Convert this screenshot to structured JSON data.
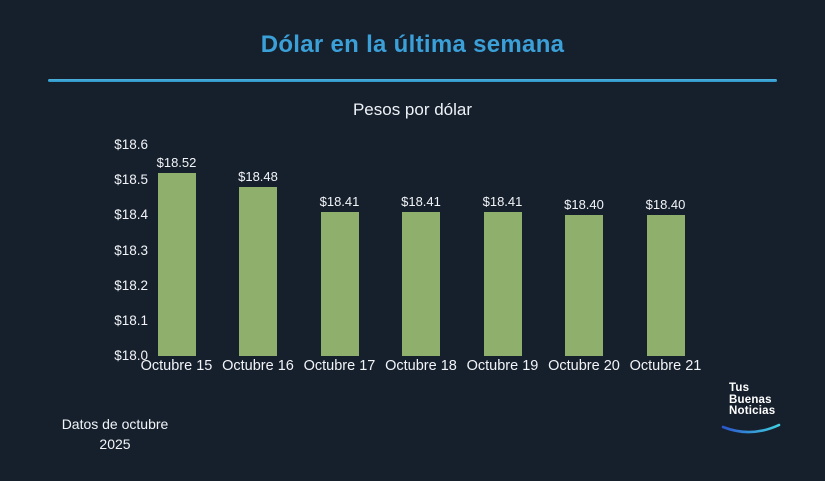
{
  "title": "Dólar en la última semana",
  "subtitle": "Pesos por dólar",
  "footer": {
    "line1": "Datos de octubre",
    "line2": "2025"
  },
  "logo": {
    "line1": "Tus",
    "line2": "Buenas",
    "line3": "Noticias"
  },
  "colors": {
    "background": "#16202d",
    "title_blue": "#3b9fd8",
    "divider_blue": "#2e9fd2",
    "bar_green": "#8fb06d",
    "text_white": "#f2f4f7",
    "swoosh_left": "#2b55cc",
    "swoosh_right": "#3fd0e0"
  },
  "chart_data": {
    "type": "bar",
    "title": "Dólar en la última semana",
    "subtitle": "Pesos por dólar",
    "categories": [
      "Octubre 15",
      "Octubre 16",
      "Octubre 17",
      "Octubre 18",
      "Octubre 19",
      "Octubre 20",
      "Octubre 21"
    ],
    "values": [
      18.52,
      18.48,
      18.41,
      18.41,
      18.41,
      18.4,
      18.4
    ],
    "value_labels": [
      "$18.52",
      "$18.48",
      "$18.41",
      "$18.41",
      "$18.41",
      "$18.40",
      "$18.40"
    ],
    "xlabel": "",
    "ylabel": "Pesos por dólar",
    "ylim": [
      18.0,
      18.6
    ],
    "ytick_step": 0.1,
    "ytick_labels": [
      "$18.0",
      "$18.1",
      "$18.2",
      "$18.3",
      "$18.4",
      "$18.5",
      "$18.6"
    ],
    "grid": false,
    "legend": false,
    "bar_color": "#8fb06d"
  }
}
